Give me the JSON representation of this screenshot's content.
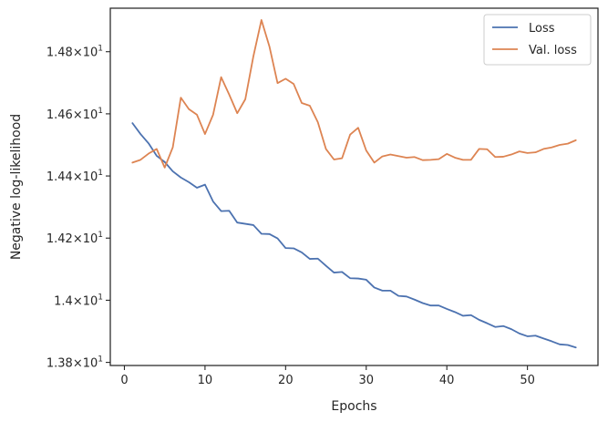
{
  "chart_data": {
    "type": "line",
    "title": "",
    "xlabel": "Epochs",
    "ylabel": "Negative log-likelihood",
    "xlim": [
      -1.75,
      58.75
    ],
    "ylim": [
      13.79,
      14.94
    ],
    "x_ticks": [
      0,
      10,
      20,
      30,
      40,
      50
    ],
    "y_ticks": [
      13.8,
      14.0,
      14.2,
      14.4,
      14.6,
      14.8
    ],
    "y_tick_labels": [
      {
        "base": "1.38",
        "exp": "1"
      },
      {
        "base": "1.4",
        "exp": "1"
      },
      {
        "base": "1.42",
        "exp": "1"
      },
      {
        "base": "1.44",
        "exp": "1"
      },
      {
        "base": "1.46",
        "exp": "1"
      },
      {
        "base": "1.48",
        "exp": "1"
      }
    ],
    "legend_placement": "top-right",
    "grid": false,
    "x": [
      1,
      2,
      3,
      4,
      5,
      6,
      7,
      8,
      9,
      10,
      11,
      12,
      13,
      14,
      15,
      16,
      17,
      18,
      19,
      20,
      21,
      22,
      23,
      24,
      25,
      26,
      27,
      28,
      29,
      30,
      31,
      32,
      33,
      34,
      35,
      36,
      37,
      38,
      39,
      40,
      41,
      42,
      43,
      44,
      45,
      46,
      47,
      48,
      49,
      50,
      51,
      52,
      53,
      54,
      55,
      56
    ],
    "series": [
      {
        "name": "Loss",
        "color": "#4c72b0",
        "values": [
          14.57,
          14.535,
          14.505,
          14.465,
          14.445,
          14.415,
          14.395,
          14.38,
          14.362,
          14.372,
          14.318,
          14.287,
          14.288,
          14.25,
          14.246,
          14.242,
          14.214,
          14.213,
          14.199,
          14.168,
          14.167,
          14.154,
          14.133,
          14.134,
          14.111,
          14.089,
          14.091,
          14.071,
          14.07,
          14.066,
          14.041,
          14.031,
          14.031,
          14.014,
          14.012,
          14.002,
          13.991,
          13.983,
          13.983,
          13.972,
          13.962,
          13.95,
          13.952,
          13.937,
          13.926,
          13.914,
          13.917,
          13.907,
          13.893,
          13.884,
          13.886,
          13.877,
          13.868,
          13.858,
          13.856,
          13.848
        ]
      },
      {
        "name": "Val. loss",
        "color": "#dd8452",
        "values": [
          14.443,
          14.452,
          14.472,
          14.487,
          14.427,
          14.492,
          14.652,
          14.615,
          14.597,
          14.535,
          14.597,
          14.718,
          14.662,
          14.602,
          14.647,
          14.785,
          14.902,
          14.816,
          14.699,
          14.713,
          14.696,
          14.635,
          14.626,
          14.573,
          14.487,
          14.453,
          14.457,
          14.533,
          14.555,
          14.482,
          14.443,
          14.463,
          14.469,
          14.464,
          14.459,
          14.461,
          14.451,
          14.452,
          14.454,
          14.471,
          14.459,
          14.452,
          14.452,
          14.487,
          14.486,
          14.461,
          14.462,
          14.469,
          14.479,
          14.474,
          14.476,
          14.487,
          14.492,
          14.5,
          14.504,
          14.515
        ]
      }
    ]
  }
}
